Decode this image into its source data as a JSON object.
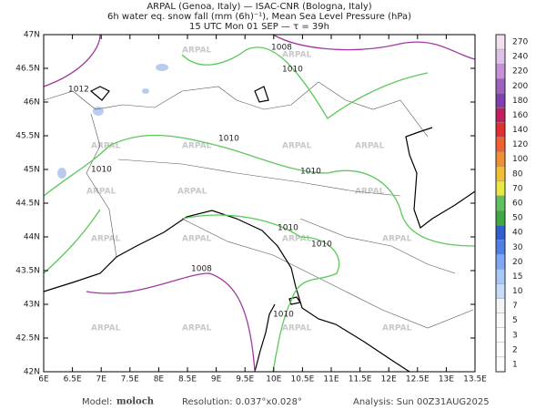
{
  "header": {
    "lines": [
      "ARPAL (Genoa, Italy)  —  ISAC-CNR (Bologna, Italy)",
      "6h water eq. snow fall (mm (6h)⁻¹), Mean Sea Level Pressure (hPa)",
      "15 UTC Mon 01 SEP  —  τ = 39h"
    ]
  },
  "map": {
    "lat_labels": [
      "47N",
      "46.5N",
      "46N",
      "45.5N",
      "45N",
      "44.5N",
      "44N",
      "43.5N",
      "43N",
      "42.5N",
      "42N"
    ],
    "lon_labels": [
      "6E",
      "6.5E",
      "7E",
      "7.5E",
      "8E",
      "8.5E",
      "9E",
      "9.5E",
      "10E",
      "10.5E",
      "11E",
      "11.5E",
      "12E",
      "12.5E",
      "13E",
      "13.5E"
    ],
    "watermark": "ARPAL",
    "contour_labels": [
      "1008",
      "1012",
      "1010",
      "1010",
      "1010",
      "1010",
      "1010",
      "1010",
      "1008",
      "1010"
    ]
  },
  "colorbar": {
    "labels": [
      "270",
      "240",
      "220",
      "200",
      "180",
      "160",
      "140",
      "120",
      "100",
      "80",
      "70",
      "60",
      "50",
      "40",
      "30",
      "20",
      "15",
      "10",
      "7",
      "5",
      "3",
      "2",
      "1"
    ],
    "colors": [
      "#f0e0f0",
      "#e0c0e8",
      "#c890d8",
      "#a060c0",
      "#8040b0",
      "#c02060",
      "#e03030",
      "#f06030",
      "#f09030",
      "#f0c030",
      "#e8e840",
      "#60c060",
      "#40a840",
      "#3060d0",
      "#5080e0",
      "#80a8f0",
      "#a8c8f8",
      "#c8dcf8",
      "#f4f4f4",
      "#fafafa",
      "#ffffff",
      "#ffffff",
      "#ffffff"
    ]
  },
  "footer": {
    "model_label": "Model:",
    "model": "moloch",
    "resolution": "Resolution: 0.037°x0.028°",
    "analysis": "Analysis: Sun 00Z31AUG2025"
  }
}
